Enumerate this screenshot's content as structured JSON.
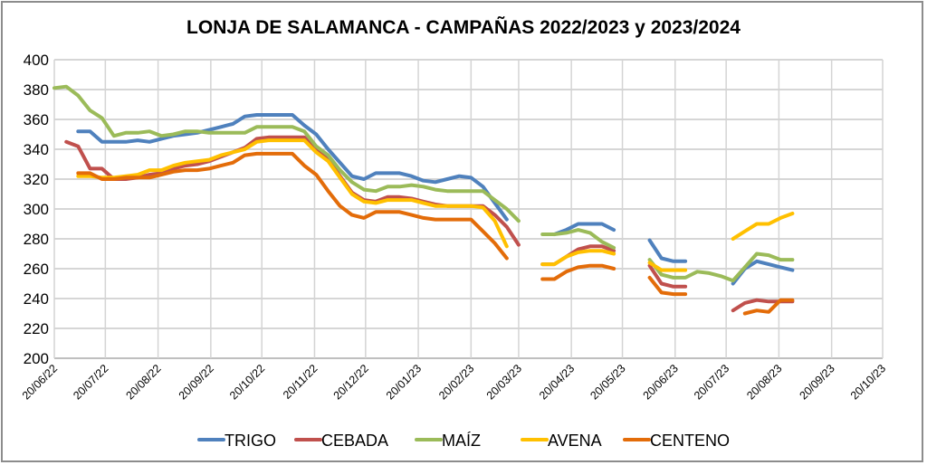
{
  "chart_data": {
    "type": "line",
    "title": "LONJA DE SALAMANCA - CAMPAÑAS 2022/2023 y 2023/2024",
    "xlabel": "",
    "ylabel": "",
    "ylim": [
      200,
      400
    ],
    "yticks": [
      "400",
      "380",
      "360",
      "340",
      "320",
      "300",
      "280",
      "260",
      "240",
      "220",
      "200"
    ],
    "xticks": [
      "20/06/22",
      "20/07/22",
      "20/08/22",
      "20/09/22",
      "20/10/22",
      "20/11/22",
      "20/12/22",
      "20/01/23",
      "20/02/23",
      "20/03/23",
      "20/04/23",
      "20/05/23",
      "20/06/23",
      "20/07/23",
      "20/08/23",
      "20/09/23",
      "20/10/23"
    ],
    "xlim": [
      "20/06/22",
      "20/10/23"
    ],
    "grid": true,
    "legend_position": "bottom",
    "series": [
      {
        "name": "TRIGO",
        "color": "#4f81bd",
        "segments": [
          {
            "start": "04/07/22",
            "step_days": 7,
            "values": [
              352,
              352,
              345,
              345,
              345,
              346,
              345,
              347,
              349,
              350,
              351,
              353,
              355,
              357,
              362,
              363,
              363,
              363,
              363,
              356,
              350,
              340,
              331,
              322,
              320,
              324,
              324,
              324,
              322,
              319,
              318,
              320,
              322,
              321,
              315,
              304,
              293
            ]
          },
          {
            "start": "10/04/23",
            "step_days": 7,
            "values": [
              283,
              286,
              290,
              290,
              290,
              286
            ]
          },
          {
            "start": "05/06/23",
            "step_days": 7,
            "values": [
              279,
              267,
              265,
              265
            ]
          },
          {
            "start": "24/07/23",
            "step_days": 7,
            "values": [
              250,
              260,
              265,
              263,
              261,
              259
            ]
          }
        ]
      },
      {
        "name": "CEBADA",
        "color": "#c0504d",
        "segments": [
          {
            "start": "27/06/22",
            "step_days": 7,
            "values": [
              345,
              342,
              327,
              327,
              320,
              320,
              321,
              323,
              324,
              327,
              329,
              330,
              332,
              335,
              338,
              341,
              347,
              348,
              348,
              348,
              348,
              340,
              333,
              322,
              311,
              306,
              305,
              308,
              308,
              307,
              305,
              303,
              302,
              302,
              302,
              302,
              296,
              288,
              276
            ]
          },
          {
            "start": "03/04/23",
            "step_days": 7,
            "values": [
              263,
              263,
              268,
              273,
              275,
              275,
              272
            ]
          },
          {
            "start": "05/06/23",
            "step_days": 7,
            "values": [
              262,
              250,
              248,
              248
            ]
          },
          {
            "start": "24/07/23",
            "step_days": 7,
            "values": [
              232,
              237,
              239,
              238,
              238,
              238
            ]
          }
        ]
      },
      {
        "name": "MAÍZ",
        "color": "#9bbb59",
        "segments": [
          {
            "start": "20/06/22",
            "step_days": 7,
            "values": [
              381,
              382,
              376,
              366,
              361,
              349,
              351,
              351,
              352,
              349,
              350,
              352,
              352,
              351,
              351,
              351,
              351,
              355,
              355,
              355,
              355,
              352,
              342,
              336,
              326,
              318,
              313,
              312,
              315,
              315,
              316,
              315,
              313,
              312,
              312,
              312,
              312,
              306,
              300,
              292
            ]
          },
          {
            "start": "03/04/23",
            "step_days": 7,
            "values": [
              283,
              283,
              284,
              286,
              284,
              278,
              274
            ]
          },
          {
            "start": "05/06/23",
            "step_days": 7,
            "values": [
              266,
              256,
              254,
              254,
              258,
              257,
              255,
              252,
              261,
              270,
              269,
              266,
              266
            ]
          }
        ]
      },
      {
        "name": "AVENA",
        "color": "#ffc000",
        "segments": [
          {
            "start": "04/07/22",
            "step_days": 7,
            "values": [
              322,
              322,
              321,
              321,
              322,
              323,
              326,
              326,
              329,
              331,
              332,
              333,
              336,
              338,
              340,
              345,
              346,
              346,
              346,
              346,
              338,
              332,
              321,
              310,
              305,
              304,
              306,
              306,
              306,
              304,
              302,
              302,
              302,
              302,
              301,
              292,
              275
            ]
          },
          {
            "start": "03/04/23",
            "step_days": 7,
            "values": [
              263,
              263,
              268,
              271,
              272,
              272,
              270
            ]
          },
          {
            "start": "05/06/23",
            "step_days": 7,
            "values": [
              264,
              259,
              259,
              259
            ]
          },
          {
            "start": "24/07/23",
            "step_days": 7,
            "values": [
              280,
              285,
              290,
              290,
              294,
              297
            ]
          }
        ]
      },
      {
        "name": "CENTENO",
        "color": "#e36c09",
        "segments": [
          {
            "start": "04/07/22",
            "step_days": 7,
            "values": [
              324,
              324,
              320,
              320,
              321,
              321,
              321,
              323,
              325,
              326,
              326,
              327,
              329,
              331,
              336,
              337,
              337,
              337,
              337,
              329,
              323,
              312,
              302,
              296,
              294,
              298,
              298,
              298,
              296,
              294,
              293,
              293,
              293,
              293,
              285,
              277,
              267
            ]
          },
          {
            "start": "03/04/23",
            "step_days": 7,
            "values": [
              253,
              253,
              258,
              261,
              262,
              262,
              260
            ]
          },
          {
            "start": "05/06/23",
            "step_days": 7,
            "values": [
              254,
              244,
              243,
              243
            ]
          },
          {
            "start": "31/07/23",
            "step_days": 7,
            "values": [
              230,
              232,
              231,
              239,
              239
            ]
          }
        ]
      }
    ]
  }
}
